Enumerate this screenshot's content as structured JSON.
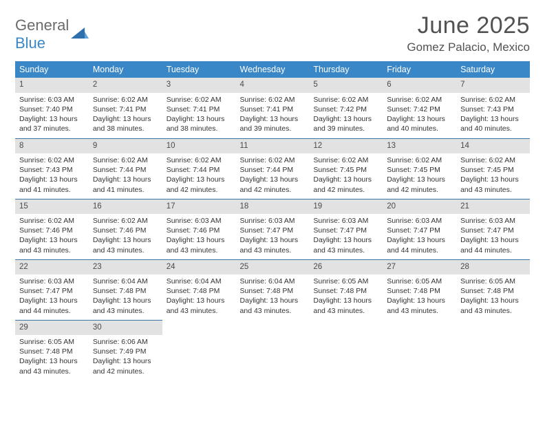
{
  "logo": {
    "word1": "General",
    "word2": "Blue"
  },
  "title": "June 2025",
  "location": "Gomez Palacio, Mexico",
  "colors": {
    "header_bg": "#3a87c8",
    "header_text": "#ffffff",
    "daynum_bg": "#e2e2e2",
    "row_border": "#3a75a5",
    "title_color": "#525252",
    "logo_gray": "#6b6b6b",
    "logo_blue": "#3a87c8"
  },
  "fonts": {
    "title_size": 34,
    "location_size": 17,
    "header_size": 12.5,
    "cell_size": 10.5,
    "daynum_size": 11.5
  },
  "day_headers": [
    "Sunday",
    "Monday",
    "Tuesday",
    "Wednesday",
    "Thursday",
    "Friday",
    "Saturday"
  ],
  "weeks": [
    [
      {
        "n": "1",
        "sr": "6:03 AM",
        "ss": "7:40 PM",
        "dl": "13 hours and 37 minutes."
      },
      {
        "n": "2",
        "sr": "6:02 AM",
        "ss": "7:41 PM",
        "dl": "13 hours and 38 minutes."
      },
      {
        "n": "3",
        "sr": "6:02 AM",
        "ss": "7:41 PM",
        "dl": "13 hours and 38 minutes."
      },
      {
        "n": "4",
        "sr": "6:02 AM",
        "ss": "7:41 PM",
        "dl": "13 hours and 39 minutes."
      },
      {
        "n": "5",
        "sr": "6:02 AM",
        "ss": "7:42 PM",
        "dl": "13 hours and 39 minutes."
      },
      {
        "n": "6",
        "sr": "6:02 AM",
        "ss": "7:42 PM",
        "dl": "13 hours and 40 minutes."
      },
      {
        "n": "7",
        "sr": "6:02 AM",
        "ss": "7:43 PM",
        "dl": "13 hours and 40 minutes."
      }
    ],
    [
      {
        "n": "8",
        "sr": "6:02 AM",
        "ss": "7:43 PM",
        "dl": "13 hours and 41 minutes."
      },
      {
        "n": "9",
        "sr": "6:02 AM",
        "ss": "7:44 PM",
        "dl": "13 hours and 41 minutes."
      },
      {
        "n": "10",
        "sr": "6:02 AM",
        "ss": "7:44 PM",
        "dl": "13 hours and 42 minutes."
      },
      {
        "n": "11",
        "sr": "6:02 AM",
        "ss": "7:44 PM",
        "dl": "13 hours and 42 minutes."
      },
      {
        "n": "12",
        "sr": "6:02 AM",
        "ss": "7:45 PM",
        "dl": "13 hours and 42 minutes."
      },
      {
        "n": "13",
        "sr": "6:02 AM",
        "ss": "7:45 PM",
        "dl": "13 hours and 42 minutes."
      },
      {
        "n": "14",
        "sr": "6:02 AM",
        "ss": "7:45 PM",
        "dl": "13 hours and 43 minutes."
      }
    ],
    [
      {
        "n": "15",
        "sr": "6:02 AM",
        "ss": "7:46 PM",
        "dl": "13 hours and 43 minutes."
      },
      {
        "n": "16",
        "sr": "6:02 AM",
        "ss": "7:46 PM",
        "dl": "13 hours and 43 minutes."
      },
      {
        "n": "17",
        "sr": "6:03 AM",
        "ss": "7:46 PM",
        "dl": "13 hours and 43 minutes."
      },
      {
        "n": "18",
        "sr": "6:03 AM",
        "ss": "7:47 PM",
        "dl": "13 hours and 43 minutes."
      },
      {
        "n": "19",
        "sr": "6:03 AM",
        "ss": "7:47 PM",
        "dl": "13 hours and 43 minutes."
      },
      {
        "n": "20",
        "sr": "6:03 AM",
        "ss": "7:47 PM",
        "dl": "13 hours and 44 minutes."
      },
      {
        "n": "21",
        "sr": "6:03 AM",
        "ss": "7:47 PM",
        "dl": "13 hours and 44 minutes."
      }
    ],
    [
      {
        "n": "22",
        "sr": "6:03 AM",
        "ss": "7:47 PM",
        "dl": "13 hours and 44 minutes."
      },
      {
        "n": "23",
        "sr": "6:04 AM",
        "ss": "7:48 PM",
        "dl": "13 hours and 43 minutes."
      },
      {
        "n": "24",
        "sr": "6:04 AM",
        "ss": "7:48 PM",
        "dl": "13 hours and 43 minutes."
      },
      {
        "n": "25",
        "sr": "6:04 AM",
        "ss": "7:48 PM",
        "dl": "13 hours and 43 minutes."
      },
      {
        "n": "26",
        "sr": "6:05 AM",
        "ss": "7:48 PM",
        "dl": "13 hours and 43 minutes."
      },
      {
        "n": "27",
        "sr": "6:05 AM",
        "ss": "7:48 PM",
        "dl": "13 hours and 43 minutes."
      },
      {
        "n": "28",
        "sr": "6:05 AM",
        "ss": "7:48 PM",
        "dl": "13 hours and 43 minutes."
      }
    ],
    [
      {
        "n": "29",
        "sr": "6:05 AM",
        "ss": "7:48 PM",
        "dl": "13 hours and 43 minutes."
      },
      {
        "n": "30",
        "sr": "6:06 AM",
        "ss": "7:49 PM",
        "dl": "13 hours and 42 minutes."
      },
      null,
      null,
      null,
      null,
      null
    ]
  ],
  "labels": {
    "sunrise": "Sunrise:",
    "sunset": "Sunset:",
    "daylight": "Daylight:"
  }
}
